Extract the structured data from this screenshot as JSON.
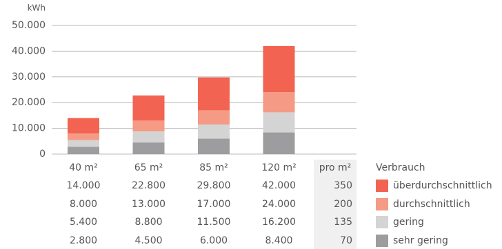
{
  "chart_data": {
    "type": "bar",
    "y_unit": "kWh",
    "categories": [
      "40 m²",
      "65 m²",
      "85 m²",
      "120 m²"
    ],
    "series": [
      {
        "name": "überdurchschnittlich",
        "color": "#f26451",
        "values": [
          14000,
          22800,
          29800,
          42000
        ],
        "value_labels": [
          "14.000",
          "22.800",
          "29.800",
          "42.000"
        ],
        "per_unit": 350
      },
      {
        "name": "durchschnittlich",
        "color": "#f59a84",
        "values": [
          8000,
          13000,
          17000,
          24000
        ],
        "value_labels": [
          "8.000",
          "13.000",
          "17.000",
          "24.000"
        ],
        "per_unit": 200
      },
      {
        "name": "gering",
        "color": "#d4d4d4",
        "values": [
          5400,
          8800,
          11500,
          16200
        ],
        "value_labels": [
          "5.400",
          "8.800",
          "11.500",
          "16.200"
        ],
        "per_unit": 135
      },
      {
        "name": "sehr gering",
        "color": "#9d9d9f",
        "values": [
          2800,
          4500,
          6000,
          8400
        ],
        "value_labels": [
          "2.800",
          "4.500",
          "6.000",
          "8.400"
        ],
        "per_unit": 70
      }
    ],
    "per_unit_label": "pro m²",
    "legend_title": "Verbrauch",
    "ylim": [
      0,
      50000
    ],
    "yticks": [
      0,
      {
        "value": 10000,
        "label": "10.000"
      },
      {
        "value": 20000,
        "label": "20.000"
      },
      {
        "value": 30000,
        "label": "30.000"
      },
      {
        "value": 40000,
        "label": "40.000"
      },
      {
        "value": 50000,
        "label": "50.000"
      }
    ],
    "grid": true
  }
}
